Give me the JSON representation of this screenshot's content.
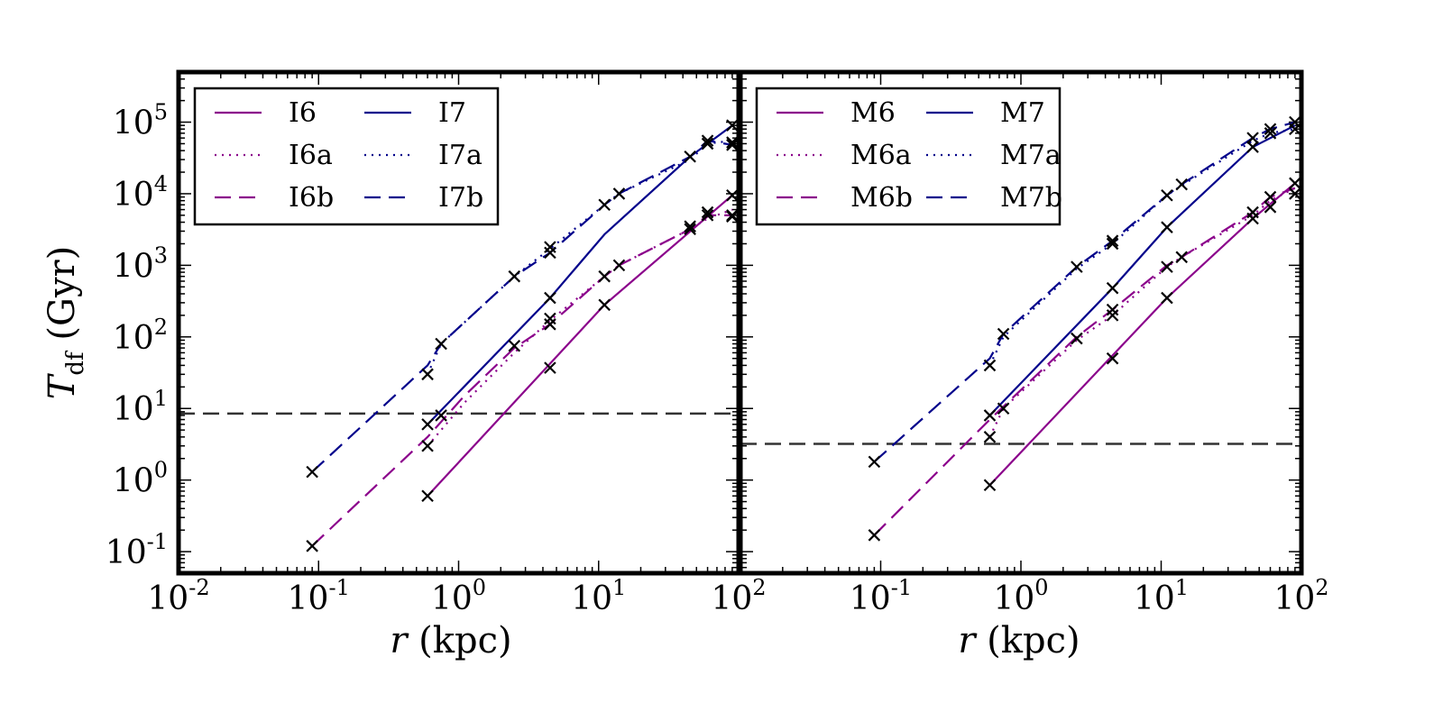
{
  "chart_data": [
    {
      "type": "line",
      "panel": "left",
      "xscale": "log",
      "yscale": "log",
      "xlim": [
        0.01,
        100
      ],
      "ylim": [
        0.05,
        500000
      ],
      "xlabel": {
        "italic": "r",
        "rest": " (kpc)"
      },
      "ylabel": {
        "italic": "T",
        "sub": "df",
        "rest": " (Gyr)"
      },
      "reference_line_y": 8.5,
      "legend": {
        "placement": "top-left",
        "columns": 2
      },
      "series": [
        {
          "name": "I6",
          "color": "#8B008B",
          "style": "solid",
          "x": [
            0.6,
            11,
            90
          ],
          "y": [
            0.6,
            280,
            9500
          ]
        },
        {
          "name": "I6a",
          "color": "#8B008B",
          "style": "dotted",
          "x": [
            0.6,
            1.1,
            2.5,
            4.5,
            11,
            14,
            45,
            60,
            90
          ],
          "y": [
            3,
            12,
            60,
            170,
            700,
            1000,
            3200,
            4500,
            6000
          ]
        },
        {
          "name": "I6b",
          "color": "#8B008B",
          "style": "dashed",
          "x": [
            0.09,
            0.6,
            1.1,
            2.5,
            4.5,
            11,
            14,
            45,
            60,
            90
          ],
          "y": [
            0.12,
            4,
            15,
            70,
            150,
            700,
            1000,
            3200,
            5000,
            5000
          ]
        },
        {
          "name": "I7",
          "color": "#00008B",
          "style": "solid",
          "x": [
            0.6,
            4.5,
            11,
            45,
            90
          ],
          "y": [
            6,
            350,
            2700,
            33000,
            90000
          ]
        },
        {
          "name": "I7a",
          "color": "#00008B",
          "style": "dotted",
          "x": [
            0.6,
            0.75,
            2.5,
            4.5,
            11,
            14,
            45,
            60,
            90
          ],
          "y": [
            30,
            80,
            700,
            1700,
            7000,
            10000,
            30000,
            50000,
            55000
          ]
        },
        {
          "name": "I7b",
          "color": "#00008B",
          "style": "dashed",
          "x": [
            0.09,
            0.6,
            0.75,
            2.5,
            4.5,
            11,
            14,
            45,
            60,
            90
          ],
          "y": [
            1.3,
            40,
            80,
            700,
            1500,
            7000,
            10000,
            33000,
            55000,
            48000
          ]
        }
      ],
      "markers": {
        "symbol": "x",
        "points": [
          [
            0.09,
            1.3
          ],
          [
            0.09,
            0.12
          ],
          [
            0.6,
            0.6
          ],
          [
            0.6,
            3
          ],
          [
            0.6,
            6
          ],
          [
            0.6,
            30
          ],
          [
            0.75,
            8
          ],
          [
            0.75,
            80
          ],
          [
            2.5,
            75
          ],
          [
            2.5,
            700
          ],
          [
            4.5,
            37
          ],
          [
            4.5,
            150
          ],
          [
            4.5,
            180
          ],
          [
            4.5,
            350
          ],
          [
            4.5,
            1500
          ],
          [
            4.5,
            1800
          ],
          [
            11,
            280
          ],
          [
            11,
            700
          ],
          [
            11,
            7000
          ],
          [
            14,
            1000
          ],
          [
            14,
            10000
          ],
          [
            45,
            3200
          ],
          [
            45,
            3500
          ],
          [
            45,
            33000
          ],
          [
            60,
            5000
          ],
          [
            60,
            5500
          ],
          [
            60,
            50000
          ],
          [
            60,
            55000
          ],
          [
            90,
            5000
          ],
          [
            90,
            4800
          ],
          [
            90,
            9500
          ],
          [
            90,
            48000
          ],
          [
            90,
            52000
          ],
          [
            90,
            90000
          ]
        ]
      },
      "x_ticks": [
        {
          "base": "10",
          "exp": "-2"
        },
        {
          "base": "10",
          "exp": "-1"
        },
        {
          "base": "10",
          "exp": "0"
        },
        {
          "base": "10",
          "exp": "1"
        },
        {
          "base": "10",
          "exp": "2"
        }
      ],
      "y_ticks": [
        {
          "base": "10",
          "exp": "-1"
        },
        {
          "base": "10",
          "exp": "0"
        },
        {
          "base": "10",
          "exp": "1"
        },
        {
          "base": "10",
          "exp": "2"
        },
        {
          "base": "10",
          "exp": "3"
        },
        {
          "base": "10",
          "exp": "4"
        },
        {
          "base": "10",
          "exp": "5"
        }
      ]
    },
    {
      "type": "line",
      "panel": "right",
      "xscale": "log",
      "yscale": "log",
      "xlim": [
        0.01,
        100
      ],
      "ylim": [
        0.05,
        500000
      ],
      "xlabel": {
        "italic": "r",
        "rest": " (kpc)"
      },
      "reference_line_y": 3.2,
      "legend": {
        "placement": "top-left",
        "columns": 2
      },
      "series": [
        {
          "name": "M6",
          "color": "#8B008B",
          "style": "solid",
          "x": [
            0.6,
            11,
            45,
            90
          ],
          "y": [
            0.85,
            350,
            4500,
            14000
          ]
        },
        {
          "name": "M6a",
          "color": "#8B008B",
          "style": "dotted",
          "x": [
            0.6,
            0.75,
            2.5,
            4.5,
            11,
            14,
            45,
            60,
            90
          ],
          "y": [
            4,
            10,
            90,
            200,
            950,
            1300,
            5000,
            8000,
            12000
          ]
        },
        {
          "name": "M6b",
          "color": "#8B008B",
          "style": "dashed",
          "x": [
            0.09,
            0.6,
            2.5,
            4.5,
            11,
            14,
            45,
            60,
            90
          ],
          "y": [
            0.17,
            7,
            100,
            240,
            1000,
            1300,
            5500,
            9000,
            12000
          ]
        },
        {
          "name": "M7",
          "color": "#00008B",
          "style": "solid",
          "x": [
            0.6,
            4.5,
            11,
            45,
            90
          ],
          "y": [
            8,
            480,
            3400,
            45000,
            90000
          ]
        },
        {
          "name": "M7a",
          "color": "#00008B",
          "style": "dotted",
          "x": [
            0.6,
            0.75,
            2.5,
            4.5,
            11,
            14,
            45,
            60,
            90
          ],
          "y": [
            40,
            100,
            900,
            2000,
            9500,
            13000,
            55000,
            70000,
            80000
          ]
        },
        {
          "name": "M7b",
          "color": "#00008B",
          "style": "dashed",
          "x": [
            0.09,
            0.6,
            0.75,
            2.5,
            4.5,
            11,
            14,
            45,
            60,
            90
          ],
          "y": [
            1.8,
            50,
            110,
            950,
            2200,
            9500,
            13500,
            60000,
            80000,
            100000
          ]
        }
      ],
      "markers": {
        "symbol": "x",
        "points": [
          [
            0.09,
            1.8
          ],
          [
            0.09,
            0.17
          ],
          [
            0.6,
            0.85
          ],
          [
            0.6,
            4
          ],
          [
            0.6,
            8
          ],
          [
            0.6,
            40
          ],
          [
            0.75,
            10
          ],
          [
            0.75,
            110
          ],
          [
            2.5,
            95
          ],
          [
            2.5,
            950
          ],
          [
            4.5,
            50
          ],
          [
            4.5,
            200
          ],
          [
            4.5,
            240
          ],
          [
            4.5,
            480
          ],
          [
            4.5,
            2000
          ],
          [
            4.5,
            2200
          ],
          [
            11,
            350
          ],
          [
            11,
            950
          ],
          [
            11,
            3400
          ],
          [
            11,
            9500
          ],
          [
            14,
            1300
          ],
          [
            14,
            13500
          ],
          [
            45,
            4500
          ],
          [
            45,
            5500
          ],
          [
            45,
            45000
          ],
          [
            45,
            60000
          ],
          [
            60,
            6500
          ],
          [
            60,
            9000
          ],
          [
            60,
            70000
          ],
          [
            60,
            80000
          ],
          [
            90,
            10000
          ],
          [
            90,
            14000
          ],
          [
            90,
            80000
          ],
          [
            90,
            100000
          ]
        ]
      },
      "x_ticks": [
        {
          "base": "10",
          "exp": "-1"
        },
        {
          "base": "10",
          "exp": "0"
        },
        {
          "base": "10",
          "exp": "1"
        },
        {
          "base": "10",
          "exp": "2"
        }
      ]
    }
  ]
}
